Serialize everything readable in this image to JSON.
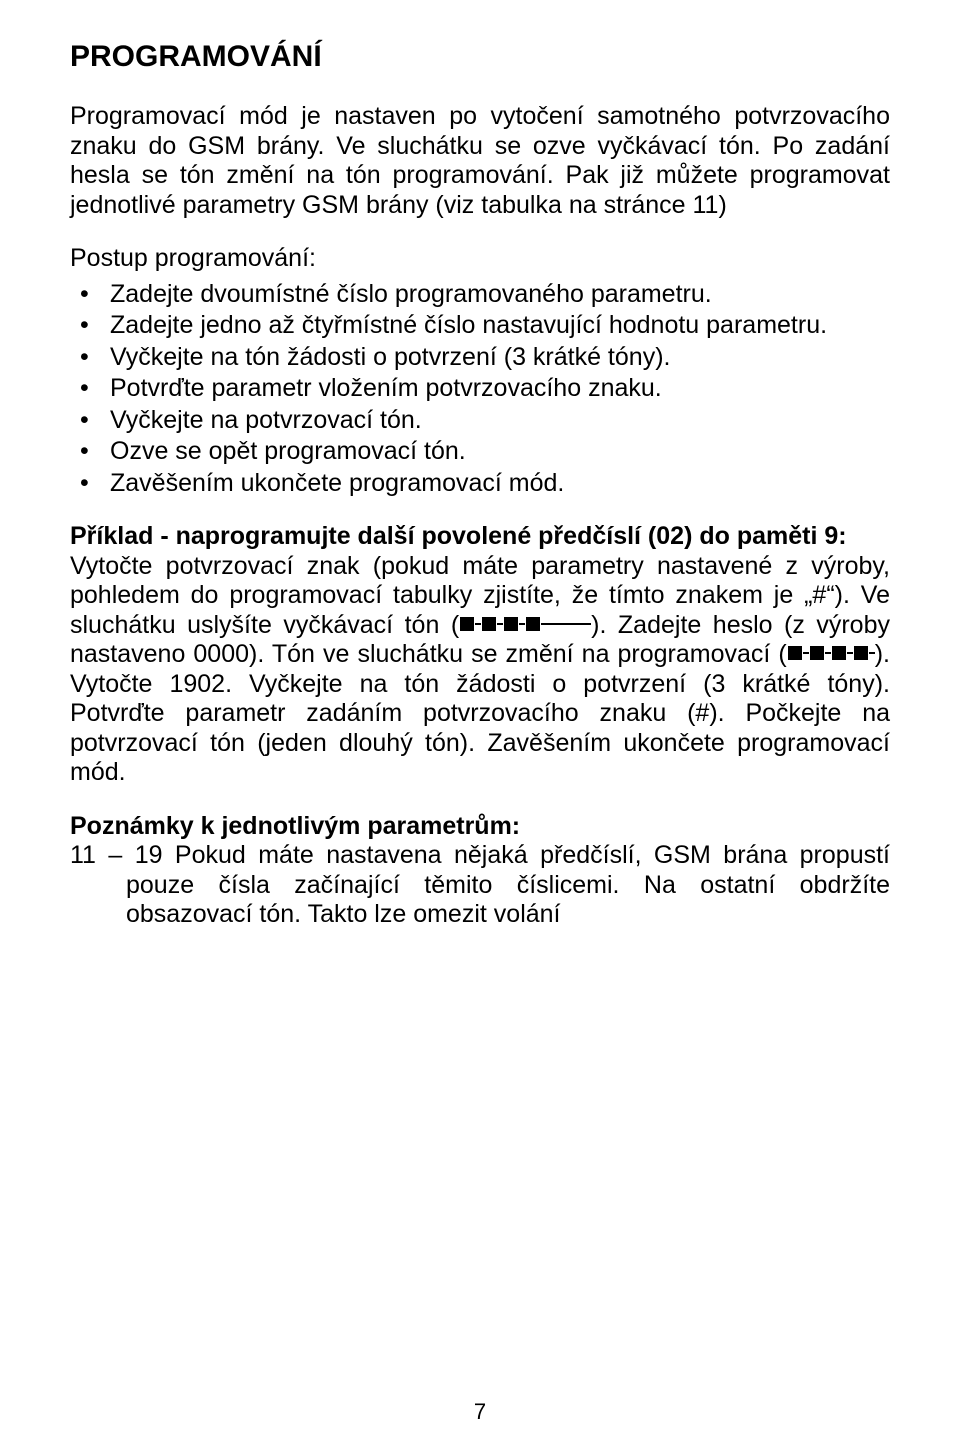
{
  "heading": "PROGRAMOVÁNÍ",
  "intro": "Programovací mód je nastaven po vytočení samotného potvrzovacího znaku do GSM brány. Ve sluchátku se ozve vyčkávací tón. Po zadání hesla se tón změní na tón programování. Pak již můžete programovat jednotlivé parametry GSM brány (viz tabulka na stránce 11)",
  "stepsTitle": "Postup programování:",
  "steps": [
    "Zadejte dvoumístné číslo programovaného parametru.",
    "Zadejte jedno až čtyřmístné číslo nastavující hodnotu parametru.",
    " Vyčkejte na tón žádosti o potvrzení (3 krátké tóny).",
    "Potvrďte parametr vložením potvrzovacího znaku.",
    "Vyčkejte na potvrzovací tón.",
    "Ozve se opět programovací tón.",
    "Zavěšením ukončete programovací mód."
  ],
  "exampleTitle": "Příklad - naprogramujte další povolené předčíslí (02) do paměti 9:",
  "example": {
    "part1": "Vytočte potvrzovací znak (pokud máte parametry nastavené z výroby, pohledem do programovací tabulky zjistíte, že tímto znakem je „#“). Ve sluchátku uslyšíte vyčkávací tón (",
    "part2": "). Zadejte heslo (z výroby nastaveno 0000). Tón ve sluchátku se změní na programovací (",
    "part3": "). Vytočte 1902. Vyčkejte na tón žádosti o potvrzení (3 krátké tóny). Potvrďte parametr zadáním potvrzovacího znaku (#). Počkejte na potvrzovací tón (jeden dlouhý tón). Zavěšením ukončete programovací mód."
  },
  "notesTitle": "Poznámky k jednotlivým parametrům:",
  "note": "11 – 19 Pokud máte nastavena nějaká předčíslí, GSM brána propustí pouze čísla začínající těmito číslicemi. Na ostatní obdržíte obsazovací tón. Takto lze omezit volání",
  "pageNumber": "7"
}
